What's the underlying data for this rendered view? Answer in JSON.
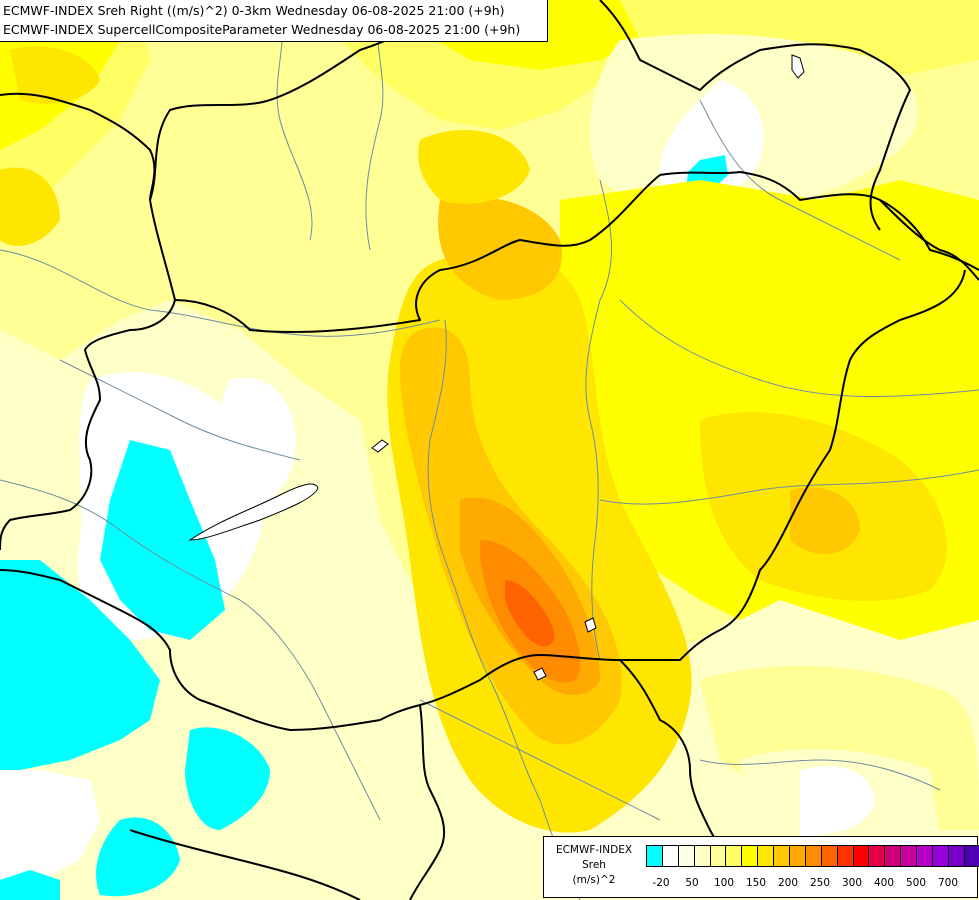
{
  "header": {
    "line1": "ECMWF-INDEX Sreh Right ((m/s)^2) 0-3km Wednesday 06-08-2025 21:00 (+9h)",
    "line2": "ECMWF-INDEX SupercellCompositeParameter Wednesday 06-08-2025 21:00 (+9h)"
  },
  "legend": {
    "title_line1": "ECMWF-INDEX",
    "title_line2": "Sreh",
    "title_line3": "(m/s)^2",
    "ticks": [
      "-20",
      "50",
      "100",
      "150",
      "200",
      "250",
      "300",
      "400",
      "500",
      "700"
    ],
    "colors": [
      "#00ffff",
      "#ffffff",
      "#ffffe6",
      "#ffffc8",
      "#ffff96",
      "#ffff64",
      "#ffff00",
      "#ffe600",
      "#ffc800",
      "#ffaa00",
      "#ff8c00",
      "#ff6400",
      "#ff3200",
      "#ff0000",
      "#e6004b",
      "#d20078",
      "#c800a0",
      "#b400c8",
      "#9600dc",
      "#7800c8",
      "#5000b4",
      "#14006e"
    ]
  },
  "map": {
    "colors": {
      "very_light": "#ffffc8",
      "light": "#ffff96",
      "mid": "#ffff64",
      "yellow": "#ffff00",
      "gold": "#ffe600",
      "amber": "#ffc800",
      "orange": "#ffaa00",
      "dark_orange": "#ff8c00",
      "red_orange": "#ff6400",
      "cyan": "#00ffff",
      "white": "#ffffff",
      "border": "#000000",
      "river": "#6e8ca0"
    }
  }
}
